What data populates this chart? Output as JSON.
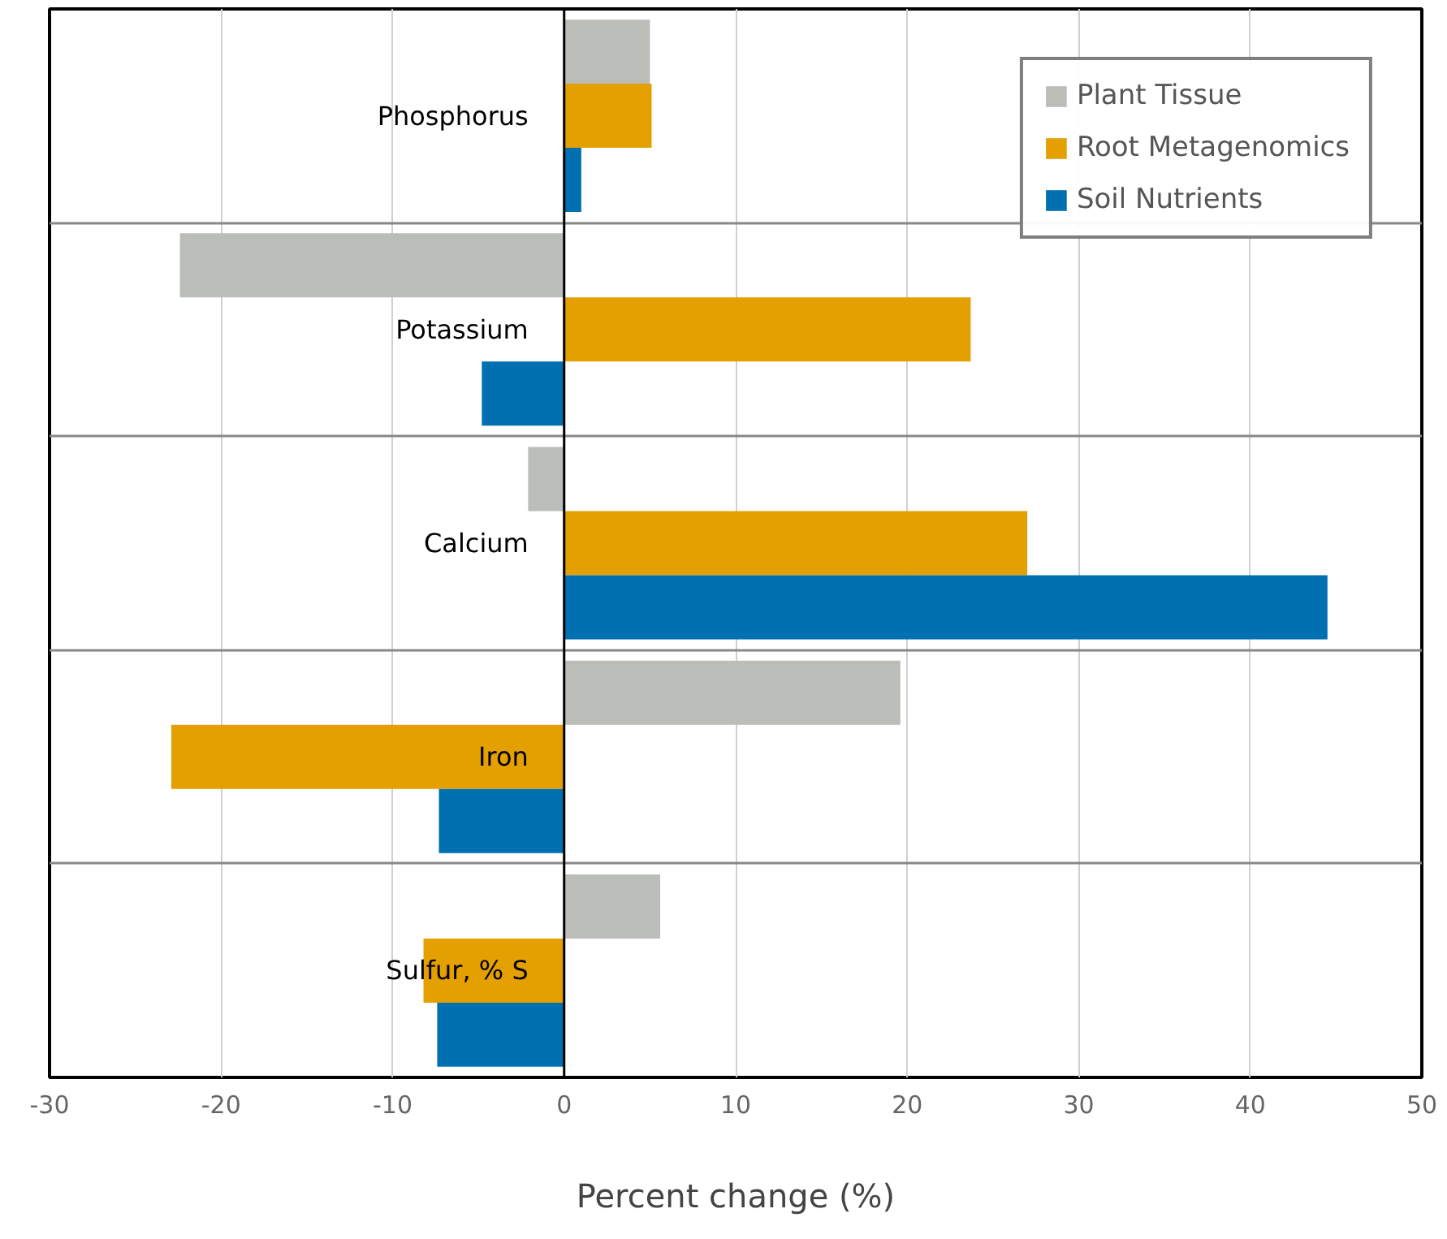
{
  "chart_data": {
    "type": "bar",
    "orientation": "horizontal",
    "xlabel": "Percent change (%)",
    "categories": [
      "Phosphorus",
      "Potassium",
      "Calcium",
      "Iron",
      "Sulfur, % S"
    ],
    "series": [
      {
        "name": "Plant Tissue",
        "color": "#bbbdb8",
        "values": [
          5.0,
          -22.4,
          -2.1,
          19.6,
          5.6
        ]
      },
      {
        "name": "Root Metagenomics",
        "color": "#e49f00",
        "values": [
          5.1,
          23.7,
          27.0,
          -22.9,
          -8.2
        ]
      },
      {
        "name": "Soil Nutrients",
        "color": "#0070b0",
        "values": [
          1.0,
          -4.8,
          44.5,
          -7.3,
          -7.4
        ]
      }
    ],
    "xlim": [
      -30,
      50
    ],
    "xticks": [
      -30,
      -20,
      -10,
      0,
      10,
      20,
      30,
      40,
      50
    ],
    "grid": true,
    "legend": "top right"
  }
}
